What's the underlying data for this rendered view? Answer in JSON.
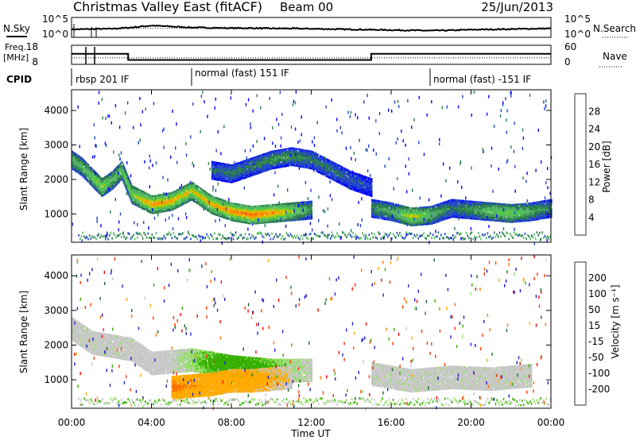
{
  "header": {
    "title": "Christmas Valley East (fitACF)",
    "beam": "Beam 00",
    "date": "25/Jun/2013"
  },
  "strip_labels": {
    "nsky": "N.Sky",
    "nsearch": "N.Search",
    "freq_line1": "Freq.",
    "freq_line2": "[MHz]",
    "nave": "Nave",
    "cpid": "CPID"
  },
  "colors": {
    "power_scale": [
      "#0000ff",
      "#2244cc",
      "#2a7f4a",
      "#55b066",
      "#4cc84c",
      "#c0c800",
      "#ff9900",
      "#ff5500",
      "#ff0000"
    ],
    "velocity_scale": [
      "#2020c8",
      "#1f6a2a",
      "#36b000",
      "#90e060",
      "#c8c8c8",
      "#ffaa00",
      "#ff7000",
      "#ff3300",
      "#ff0000"
    ]
  },
  "chart_data": [
    {
      "type": "line",
      "panel": "noise",
      "y_left_ticks": [
        "10^5",
        "10^0"
      ],
      "y_right_ticks": [
        "10^5",
        "10^0"
      ],
      "series": [
        {
          "name": "N.Sky",
          "x": [
            "00:00",
            "01:00",
            "02:00",
            "03:00",
            "04:00",
            "05:00",
            "06:00",
            "07:00",
            "08:00",
            "09:00",
            "10:00",
            "11:00",
            "12:00",
            "13:00",
            "14:00",
            "15:00",
            "16:00",
            "17:00",
            "18:00",
            "19:00",
            "20:00",
            "21:00",
            "22:00",
            "23:00",
            "24:00"
          ],
          "values": [
            2.0,
            2.1,
            2.2,
            2.6,
            3.2,
            2.9,
            2.6,
            2.5,
            2.4,
            2.4,
            2.3,
            2.3,
            2.2,
            2.1,
            2.0,
            1.9,
            1.8,
            1.7,
            1.6,
            1.7,
            1.9,
            2.0,
            2.1,
            2.2,
            2.3
          ]
        },
        {
          "name": "N.Search",
          "x": [
            "00:00",
            "04:00",
            "08:00",
            "12:00",
            "16:00",
            "20:00",
            "24:00"
          ],
          "values": [
            1.9,
            2.4,
            2.2,
            2.0,
            1.6,
            1.8,
            2.1
          ]
        }
      ]
    },
    {
      "type": "line",
      "panel": "freq_nave",
      "y_left_ticks": [
        "18",
        "8"
      ],
      "y_right_ticks": [
        "60",
        "0"
      ],
      "series": [
        {
          "name": "Freq.",
          "x": [
            "00:00",
            "02:50",
            "02:50",
            "15:00",
            "15:00",
            "24:00"
          ],
          "values": [
            14,
            14,
            10.5,
            10.5,
            14,
            14
          ]
        },
        {
          "name": "Nave",
          "x": [
            "00:00",
            "24:00"
          ],
          "values": [
            22,
            22
          ]
        }
      ]
    },
    {
      "type": "table",
      "panel": "cpid",
      "segments": [
        {
          "start": "00:00",
          "label": "rbsp 201 IF"
        },
        {
          "start": "06:00",
          "label": "normal (fast) 151 IF"
        },
        {
          "start": "18:00",
          "label": "normal (fast) -151 IF"
        }
      ]
    },
    {
      "type": "heatmap",
      "panel": "power",
      "ylabel": "Slant Range [km]",
      "ylim": [
        180,
        4600
      ],
      "yticks": [
        1000,
        2000,
        3000,
        4000
      ],
      "colorbar_label": "Power [dB]",
      "colorbar_ticks": [
        4,
        8,
        12,
        16,
        20,
        24,
        28
      ],
      "features": [
        {
          "x": [
            "00:00",
            "00:30",
            "01:00",
            "01:30",
            "02:00",
            "02:30",
            "03:00",
            "04:00",
            "05:00",
            "06:00",
            "07:00",
            "08:00",
            "09:00",
            "10:00",
            "11:00",
            "12:00"
          ],
          "range_km": [
            2600,
            2400,
            2100,
            1800,
            2000,
            2300,
            1600,
            1300,
            1400,
            1700,
            1300,
            1100,
            1000,
            1050,
            1100,
            1150
          ],
          "peak_power_db": [
            14,
            16,
            18,
            22,
            16,
            18,
            20,
            28,
            26,
            24,
            26,
            28,
            30,
            28,
            22,
            12
          ]
        },
        {
          "x": [
            "07:00",
            "08:00",
            "09:00",
            "10:00",
            "11:00",
            "12:00",
            "13:00",
            "14:00",
            "15:00"
          ],
          "range_km": [
            2300,
            2200,
            2400,
            2600,
            2700,
            2600,
            2300,
            2000,
            1800
          ],
          "peak_power_db": [
            8,
            10,
            10,
            12,
            12,
            10,
            10,
            8,
            6
          ]
        },
        {
          "x": [
            "15:00",
            "16:00",
            "17:00",
            "18:00",
            "19:00",
            "20:00",
            "21:00",
            "22:00",
            "23:00",
            "24:00"
          ],
          "range_km": [
            1200,
            1100,
            950,
            1000,
            1200,
            1150,
            1100,
            1050,
            1100,
            1200
          ],
          "peak_power_db": [
            12,
            14,
            24,
            16,
            10,
            12,
            18,
            20,
            14,
            10
          ]
        }
      ]
    },
    {
      "type": "heatmap",
      "panel": "velocity",
      "xlabel": "Time UT",
      "ylabel": "Slant Range [km]",
      "ylim": [
        180,
        4600
      ],
      "yticks": [
        1000,
        2000,
        3000,
        4000
      ],
      "xticks": [
        "00:00",
        "04:00",
        "08:00",
        "12:00",
        "16:00",
        "20:00",
        "00:00"
      ],
      "colorbar_label": "Velocity [m s⁻¹]",
      "colorbar_ticks": [
        200,
        100,
        50,
        15,
        -15,
        -50,
        -100,
        -200
      ],
      "features": [
        {
          "x": [
            "00:00",
            "01:00",
            "02:00",
            "03:00",
            "04:00",
            "06:00",
            "08:00",
            "10:00",
            "12:00"
          ],
          "range_km": [
            2500,
            2100,
            2000,
            1900,
            1500,
            1600,
            1400,
            1300,
            1300
          ],
          "velocity_ms": [
            0,
            0,
            0,
            0,
            -10,
            10,
            40,
            20,
            0
          ]
        },
        {
          "x": [
            "05:00",
            "06:00",
            "07:00",
            "08:00",
            "09:00",
            "10:00",
            "11:00"
          ],
          "range_km": [
            800,
            850,
            900,
            1000,
            1000,
            1050,
            1100
          ],
          "velocity_ms": [
            -60,
            -50,
            -40,
            -30,
            -30,
            -20,
            -15
          ]
        },
        {
          "x": [
            "15:00",
            "17:00",
            "19:00",
            "21:00",
            "23:00"
          ],
          "range_km": [
            1200,
            1000,
            1100,
            1050,
            1150
          ],
          "velocity_ms": [
            0,
            0,
            0,
            0,
            0
          ]
        }
      ]
    }
  ]
}
